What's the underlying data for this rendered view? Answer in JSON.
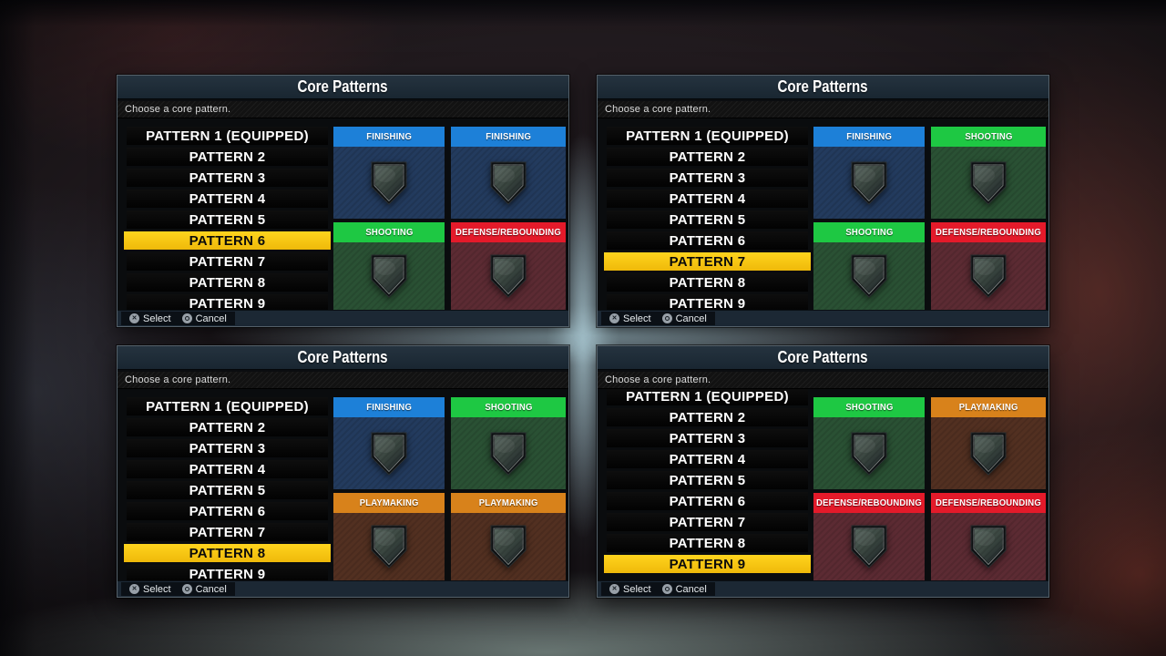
{
  "panels": [
    {
      "title": "Core Patterns",
      "subtitle": "Choose a core pattern.",
      "patterns": [
        "PATTERN 1 (EQUIPPED)",
        "PATTERN 2",
        "PATTERN 3",
        "PATTERN 4",
        "PATTERN 5",
        "PATTERN 6",
        "PATTERN 7",
        "PATTERN 8",
        "PATTERN 9"
      ],
      "selected_index": 5,
      "list_scrolled": false,
      "cards": [
        "FINISHING",
        "FINISHING",
        "SHOOTING",
        "DEFENSE/REBOUNDING"
      ],
      "footer": {
        "select": "Select",
        "cancel": "Cancel"
      }
    },
    {
      "title": "Core Patterns",
      "subtitle": "Choose a core pattern.",
      "patterns": [
        "PATTERN 1 (EQUIPPED)",
        "PATTERN 2",
        "PATTERN 3",
        "PATTERN 4",
        "PATTERN 5",
        "PATTERN 6",
        "PATTERN 7",
        "PATTERN 8",
        "PATTERN 9"
      ],
      "selected_index": 6,
      "list_scrolled": false,
      "cards": [
        "FINISHING",
        "SHOOTING",
        "SHOOTING",
        "DEFENSE/REBOUNDING"
      ],
      "footer": {
        "select": "Select",
        "cancel": "Cancel"
      }
    },
    {
      "title": "Core Patterns",
      "subtitle": "Choose a core pattern.",
      "patterns": [
        "PATTERN 1 (EQUIPPED)",
        "PATTERN 2",
        "PATTERN 3",
        "PATTERN 4",
        "PATTERN 5",
        "PATTERN 6",
        "PATTERN 7",
        "PATTERN 8",
        "PATTERN 9"
      ],
      "selected_index": 7,
      "list_scrolled": false,
      "cards": [
        "FINISHING",
        "SHOOTING",
        "PLAYMAKING",
        "PLAYMAKING"
      ],
      "footer": {
        "select": "Select",
        "cancel": "Cancel"
      }
    },
    {
      "title": "Core Patterns",
      "subtitle": "Choose a core pattern.",
      "patterns": [
        "PATTERN 1 (EQUIPPED)",
        "PATTERN 2",
        "PATTERN 3",
        "PATTERN 4",
        "PATTERN 5",
        "PATTERN 6",
        "PATTERN 7",
        "PATTERN 8",
        "PATTERN 9"
      ],
      "selected_index": 8,
      "list_scrolled": true,
      "cards": [
        "SHOOTING",
        "PLAYMAKING",
        "DEFENSE/REBOUNDING",
        "DEFENSE/REBOUNDING"
      ],
      "footer": {
        "select": "Select",
        "cancel": "Cancel"
      }
    }
  ],
  "category_colors": {
    "FINISHING": {
      "header": "#1d80d8",
      "body": "#233b5e"
    },
    "SHOOTING": {
      "header": "#1ec843",
      "body": "#2a5134"
    },
    "PLAYMAKING": {
      "header": "#d8821b",
      "body": "#523021"
    },
    "DEFENSE/REBOUNDING": {
      "header": "#e41a2a",
      "body": "#5c2b33"
    }
  },
  "selection_color": "#f8ca10",
  "icons": {
    "cross-button-icon": "✕",
    "circle-button-icon": "ring",
    "shield-icon": "shield-badge"
  }
}
